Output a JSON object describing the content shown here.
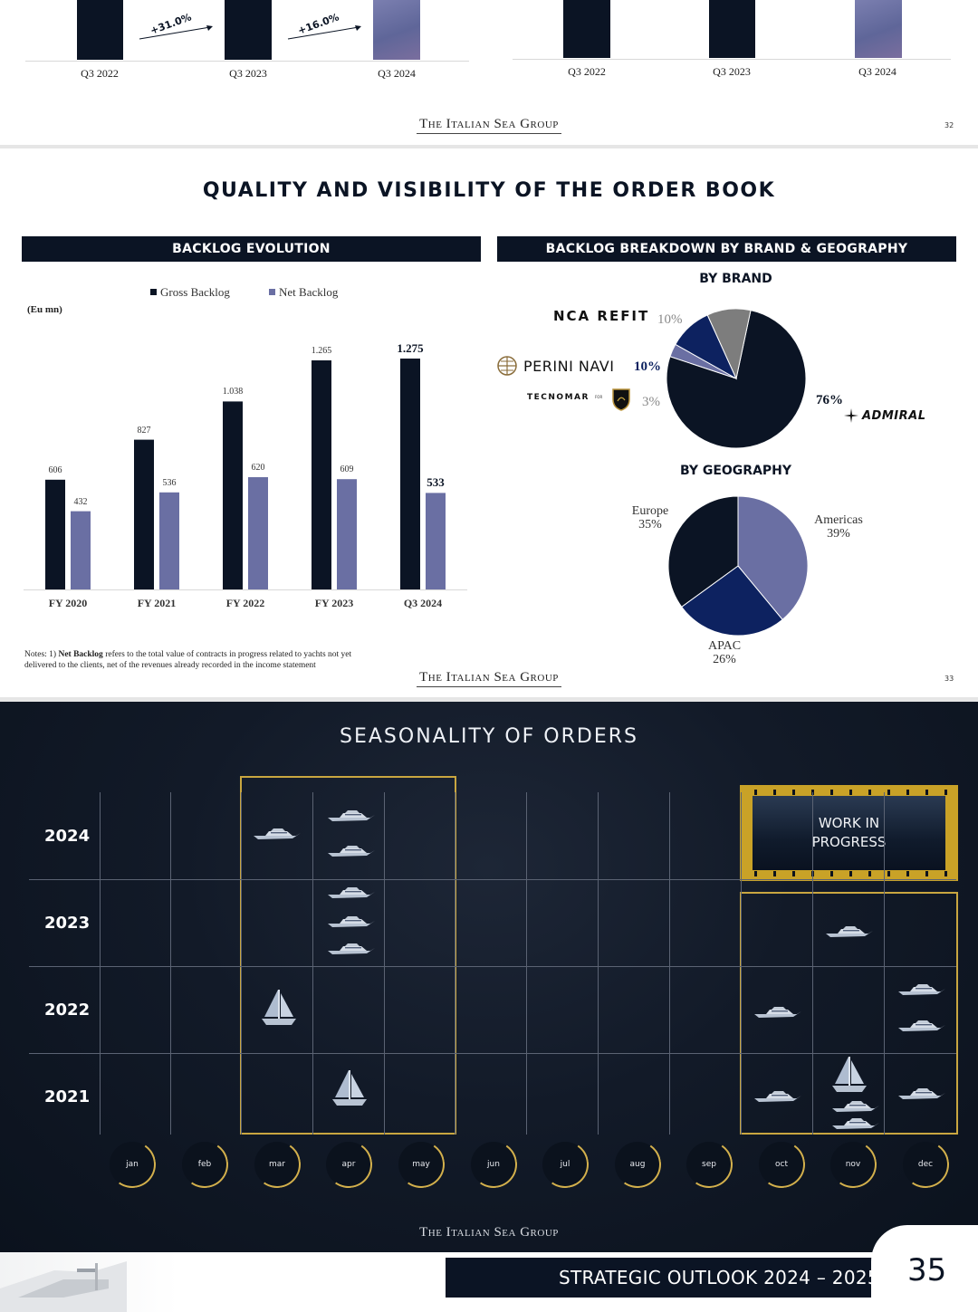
{
  "slide32": {
    "left_ticks": [
      "Q3 2022",
      "Q3 2023",
      "Q3 2024"
    ],
    "right_ticks": [
      "Q3 2022",
      "Q3 2023",
      "Q3 2024"
    ],
    "growth_1": "+31.0%",
    "growth_2": "+16.0%",
    "brand": "The Italian Sea Group",
    "page": "32"
  },
  "slide33": {
    "title": "QUALITY AND VISIBILITY OF THE ORDER BOOK",
    "left_header": "BACKLOG EVOLUTION",
    "right_header": "BACKLOG BREAKDOWN BY BRAND & GEOGRAPHY",
    "unit": "(Eu mn)",
    "by_brand": "BY BRAND",
    "by_geography": "BY GEOGRAPHY",
    "brands": {
      "nca": "NCA REFIT",
      "perini": "PERINI NAVI",
      "tecnomar": "TECNOMAR",
      "tecnomar_sub": "FOR",
      "admiral": "ADMIRAL"
    },
    "notes_prefix": "Notes: 1) ",
    "notes_bold": "Net Backlog",
    "notes_rest": " refers to the total value of contracts in progress related to yachts not yet",
    "notes_line2": "delivered to the clients, net of the revenues already recorded in the income statement",
    "brand": "The Italian Sea Group",
    "page": "33"
  },
  "chart_data": [
    {
      "type": "bar",
      "title": "BACKLOG EVOLUTION",
      "ylabel": "(Eu mn)",
      "categories": [
        "FY 2020",
        "FY 2021",
        "FY 2022",
        "FY 2023",
        "Q3 2024"
      ],
      "series": [
        {
          "name": "Gross Backlog",
          "values": [
            606,
            827,
            1038,
            1265,
            1275
          ],
          "labels": [
            "606",
            "827",
            "1.038",
            "1.265",
            "1.275"
          ],
          "color": "#0b1424"
        },
        {
          "name": "Net Backlog",
          "values": [
            432,
            536,
            620,
            609,
            533
          ],
          "labels": [
            "432",
            "536",
            "620",
            "609",
            "533"
          ],
          "color": "#6a6fa3"
        }
      ],
      "ylim": [
        0,
        1400
      ],
      "legend": "top"
    },
    {
      "type": "pie",
      "title": "BY BRAND",
      "labels": [
        "ADMIRAL",
        "TECNOMAR",
        "PERINI NAVI",
        "NCA REFIT"
      ],
      "values": [
        76,
        3,
        10,
        10
      ],
      "value_labels": [
        "76%",
        "3%",
        "10%",
        "10%"
      ],
      "colors": [
        "#0b1424",
        "#6a6fa3",
        "#0d2260",
        "#7d7d7d"
      ]
    },
    {
      "type": "pie",
      "title": "BY GEOGRAPHY",
      "labels": [
        "Americas",
        "APAC",
        "Europe"
      ],
      "values": [
        39,
        26,
        35
      ],
      "value_labels": [
        "39%",
        "26%",
        "35%"
      ],
      "colors": [
        "#6a6fa3",
        "#0d2260",
        "#0b1424"
      ]
    }
  ],
  "slide35": {
    "title": "SEASONALITY OF ORDERS",
    "years": [
      "2024",
      "2023",
      "2022",
      "2021"
    ],
    "months": [
      "jan",
      "feb",
      "mar",
      "apr",
      "may",
      "jun",
      "jul",
      "aug",
      "sep",
      "oct",
      "nov",
      "dec"
    ],
    "wip_line1": "WORK IN",
    "wip_line2": "PROGRESS",
    "brand": "The Italian Sea Group"
  },
  "footer": {
    "section": "STRATEGIC OUTLOOK 2024 – 2025",
    "page": "35"
  }
}
